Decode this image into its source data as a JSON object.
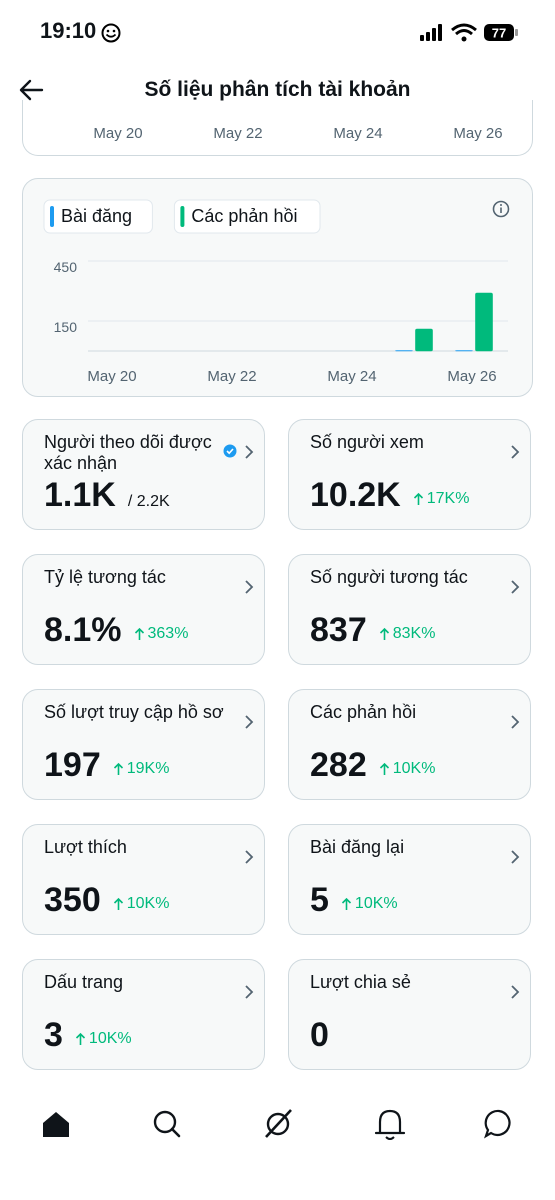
{
  "status_bar": {
    "time": "19:10",
    "battery": "77"
  },
  "header": {
    "title": "Số liệu phân tích tài khoản"
  },
  "top_chart": {
    "x_labels": [
      "May 20",
      "May 22",
      "May 24",
      "May 26"
    ]
  },
  "chart_data": {
    "type": "bar",
    "categories": [
      "May 20",
      null,
      "May 22",
      null,
      "May 24",
      null,
      "May 26"
    ],
    "series": [
      {
        "name": "Bài đăng",
        "color": "#1d9bf0",
        "values": [
          0,
          0,
          0,
          0,
          0,
          2,
          2
        ]
      },
      {
        "name": "Các phản hồi",
        "color": "#00ba7c",
        "values": [
          0,
          0,
          0,
          0,
          0,
          110,
          290
        ]
      }
    ],
    "ylim": [
      0,
      450
    ],
    "yticks": [
      150,
      450
    ],
    "grid": true
  },
  "cards": [
    {
      "title": "Người theo dõi được xác nhận",
      "value": "1.1K",
      "total": "/ 2.2K"
    },
    {
      "title": "Số người xem",
      "value": "10.2K",
      "change": "17K%"
    },
    {
      "title": "Tỷ lệ tương tác",
      "value": "8.1%",
      "change": "363%"
    },
    {
      "title": "Số người tương tác",
      "value": "837",
      "change": "83K%"
    },
    {
      "title": "Số lượt truy cập hồ sơ",
      "value": "197",
      "change": "19K%"
    },
    {
      "title": "Các phản hồi",
      "value": "282",
      "change": "10K%"
    },
    {
      "title": "Lượt thích",
      "value": "350",
      "change": "10K%"
    },
    {
      "title": "Bài đăng lại",
      "value": "5",
      "change": "10K%"
    },
    {
      "title": "Dấu trang",
      "value": "3",
      "change": "10K%"
    },
    {
      "title": "Lượt chia sẻ",
      "value": "0"
    }
  ]
}
